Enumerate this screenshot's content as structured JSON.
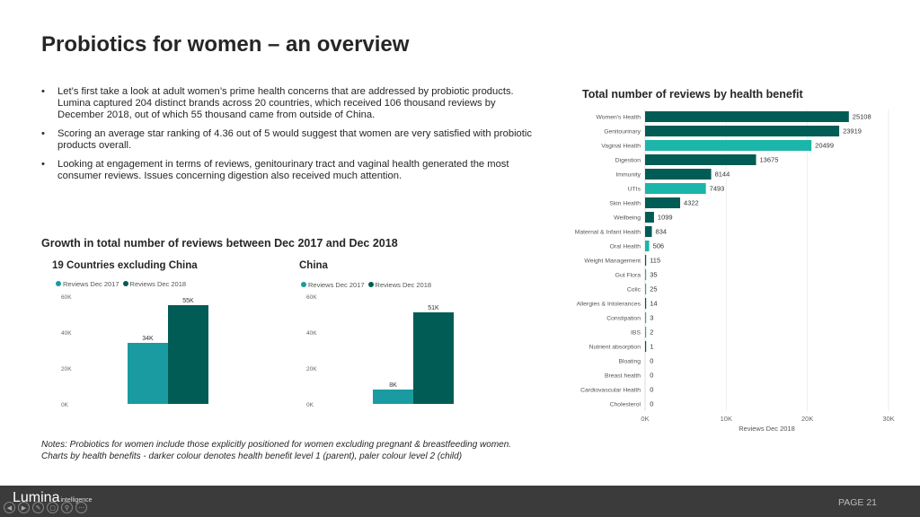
{
  "title": "Probiotics for women – an overview",
  "bullets": [
    "Let’s first take a look at adult women’s prime health concerns that are addressed by probiotic products. Lumina captured 204 distinct brands across 20 countries, which received 106 thousand reviews by December 2018, out of which 55 thousand came from outside of China.",
    "Scoring an average star ranking of 4.36 out of 5 would suggest that women are very satisfied with probiotic products overall.",
    "Looking at engagement in terms of reviews, genitourinary tract and vaginal health generated the most consumer reviews. Issues concerning digestion also received much attention."
  ],
  "growth_title": "Growth in total number of reviews between Dec 2017 and Dec 2018",
  "notes": [
    "Notes: Probiotics for women include those explicitly positioned for women excluding pregnant & breastfeeding women.",
    "Charts by health benefits - darker colour denotes health benefit level 1 (parent),  paler colour level 2 (child)"
  ],
  "colors": {
    "light": "#1a9ba1",
    "dark": "#005c55",
    "bright": "#1cb5a9"
  },
  "footer": {
    "logo_main": "Lumina",
    "logo_sub": "intelligence",
    "page": "PAGE 21"
  },
  "chart_data": [
    {
      "type": "bar",
      "title": "19 Countries excluding China",
      "series": [
        {
          "name": "Reviews Dec 2017",
          "values": [
            34000
          ],
          "label": "34K"
        },
        {
          "name": "Reviews Dec 2018",
          "values": [
            55000
          ],
          "label": "55K"
        }
      ],
      "yticks": [
        "60K",
        "40K",
        "20K",
        "0K"
      ],
      "ylim": [
        0,
        60000
      ]
    },
    {
      "type": "bar",
      "title": "China",
      "series": [
        {
          "name": "Reviews Dec 2017",
          "values": [
            8000
          ],
          "label": "8K"
        },
        {
          "name": "Reviews Dec 2018",
          "values": [
            51000
          ],
          "label": "51K"
        }
      ],
      "yticks": [
        "60K",
        "40K",
        "20K",
        "0K"
      ],
      "ylim": [
        0,
        60000
      ]
    },
    {
      "type": "bar",
      "orientation": "horizontal",
      "title": "Total number of reviews by health benefit",
      "xlabel": "Reviews Dec 2018",
      "xlim": [
        0,
        30000
      ],
      "xticks": [
        "0K",
        "10K",
        "20K",
        "30K"
      ],
      "categories": [
        "Women's Health",
        "Genitourinary",
        "Vaginal Health",
        "Digestion",
        "Immunity",
        "UTIs",
        "Skin Health",
        "Wellbeing",
        "Maternal & Infant Health",
        "Oral Health",
        "Weight Management",
        "Gut Flora",
        "Colic",
        "Allergies & Intolerances",
        "Constipation",
        "IBS",
        "Nutrient absorption",
        "Bloating",
        "Breast health",
        "Cardiovascular Health",
        "Cholesterol"
      ],
      "values": [
        25108,
        23919,
        20499,
        13675,
        8144,
        7493,
        4322,
        1099,
        834,
        506,
        115,
        35,
        25,
        14,
        3,
        2,
        1,
        0,
        0,
        0,
        0
      ],
      "level": [
        1,
        1,
        2,
        1,
        1,
        2,
        1,
        1,
        1,
        2,
        1,
        2,
        2,
        1,
        2,
        2,
        1,
        2,
        1,
        1,
        2
      ]
    }
  ]
}
